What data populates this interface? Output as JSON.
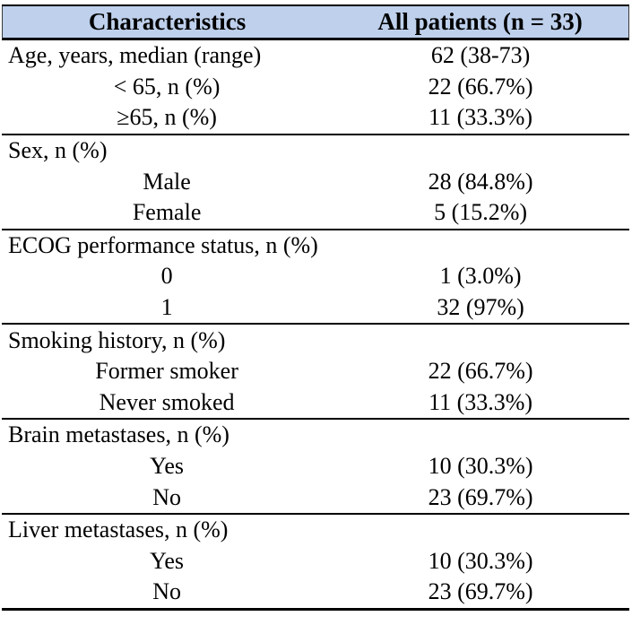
{
  "header": {
    "characteristics": "Characteristics",
    "all_patients": "All patients (n = 33)"
  },
  "colors": {
    "header_bg": "#bed0ec",
    "border": "#000000",
    "text": "#000000"
  },
  "groups": [
    {
      "rows": [
        {
          "label": "Age, years, median (range)",
          "value": "62 (38-73)",
          "indent": false
        },
        {
          "label": "< 65, n (%)",
          "value": "22 (66.7%)",
          "indent": true
        },
        {
          "label": "≥65, n (%)",
          "value": "11 (33.3%)",
          "indent": true
        }
      ]
    },
    {
      "rows": [
        {
          "label": "Sex, n (%)",
          "value": "",
          "indent": false
        },
        {
          "label": "Male",
          "value": "28 (84.8%)",
          "indent": true
        },
        {
          "label": "Female",
          "value": "5 (15.2%)",
          "indent": true
        }
      ]
    },
    {
      "rows": [
        {
          "label": "ECOG performance status, n (%)",
          "value": "",
          "indent": false
        },
        {
          "label": "0",
          "value": "1 (3.0%)",
          "indent": true
        },
        {
          "label": "1",
          "value": "32 (97%)",
          "indent": true
        }
      ]
    },
    {
      "rows": [
        {
          "label": "Smoking history, n (%)",
          "value": "",
          "indent": false
        },
        {
          "label": "Former smoker",
          "value": "22 (66.7%)",
          "indent": true
        },
        {
          "label": "Never smoked",
          "value": "11 (33.3%)",
          "indent": true
        }
      ]
    },
    {
      "rows": [
        {
          "label": "Brain metastases, n (%)",
          "value": "",
          "indent": false
        },
        {
          "label": "Yes",
          "value": "10 (30.3%)",
          "indent": true
        },
        {
          "label": "No",
          "value": "23 (69.7%)",
          "indent": true
        }
      ]
    },
    {
      "rows": [
        {
          "label": "Liver metastases, n (%)",
          "value": "",
          "indent": false
        },
        {
          "label": "Yes",
          "value": "10 (30.3%)",
          "indent": true
        },
        {
          "label": "No",
          "value": "23 (69.7%)",
          "indent": true
        }
      ]
    }
  ]
}
